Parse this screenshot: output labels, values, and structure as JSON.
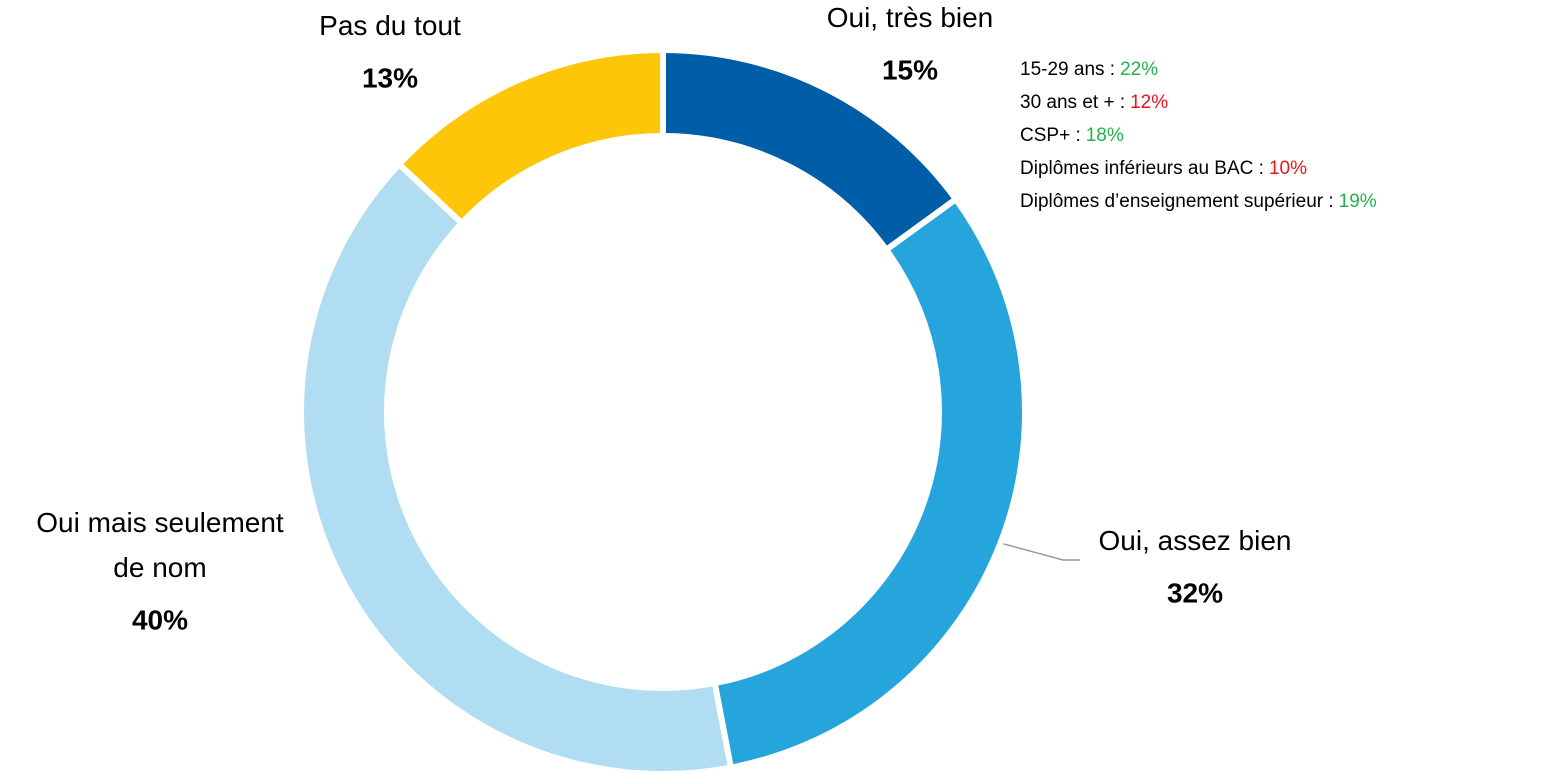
{
  "chart_data": {
    "type": "donut",
    "categories": [
      "Oui, très bien",
      "Oui, assez bien",
      "Oui mais seulement\nde nom",
      "Pas du tout"
    ],
    "values": [
      15,
      32,
      40,
      13
    ],
    "value_labels": [
      "15%",
      "32%",
      "40%",
      "13%"
    ],
    "colors": [
      "#005ea8",
      "#25a5dc",
      "#b0ddf1",
      "#fdc608"
    ],
    "annotations": [
      {
        "label": "15-29 ans :",
        "value_label": "22%",
        "color": "#22b14c"
      },
      {
        "label": "30 ans et + :",
        "value_label": "12%",
        "color": "#e8141c"
      },
      {
        "label": "CSP+ :",
        "value_label": "18%",
        "color": "#22b14c"
      },
      {
        "label": "Diplômes inférieurs au BAC :",
        "value_label": "10%",
        "color": "#e8141c"
      },
      {
        "label": "Diplômes d’enseignement supérieur :",
        "value_label": "19%",
        "color": "#22b14c"
      }
    ]
  }
}
